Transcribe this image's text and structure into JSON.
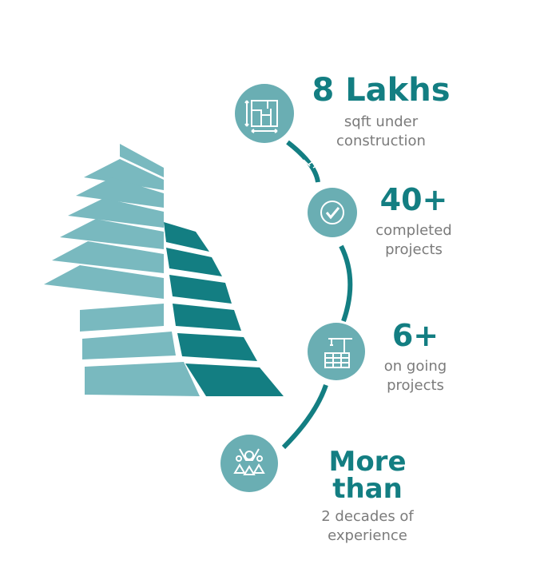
{
  "colors": {
    "teal_dark": "#137e82",
    "teal_light": "#79b9bf",
    "circle_fill": "#6aaeb3",
    "text_gray": "#7b7b7b"
  },
  "stats": [
    {
      "value": "8 Lakhs",
      "line1": "sqft under",
      "line2": "construction",
      "icon": "blueprint-icon"
    },
    {
      "value": "40+",
      "line1": "completed",
      "line2": "projects",
      "icon": "checkmark-icon"
    },
    {
      "value": "6+",
      "line1": "on going",
      "line2": "projects",
      "icon": "construction-crane-icon"
    },
    {
      "value": "More than",
      "line1": "2 decades of",
      "line2": "experience",
      "icon": "celebrating-people-icon"
    }
  ]
}
